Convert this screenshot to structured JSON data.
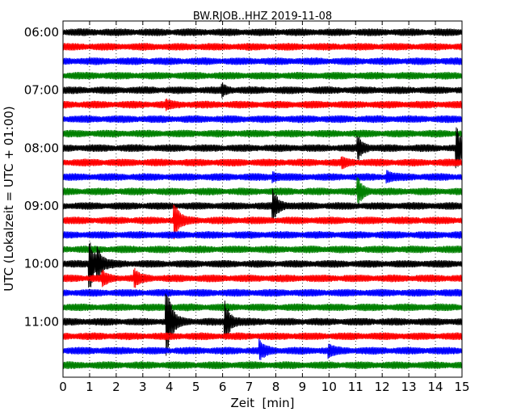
{
  "chart_data": {
    "type": "line",
    "title": "BW.RJOB..HHZ 2019-11-08",
    "xlabel": "Zeit  [min]",
    "ylabel": "UTC (Lokalzeit = UTC + 01:00)",
    "xlim": [
      0,
      15
    ],
    "x_ticks": [
      0,
      1,
      2,
      3,
      4,
      5,
      6,
      7,
      8,
      9,
      10,
      11,
      12,
      13,
      14,
      15
    ],
    "y_tick_labels": [
      "06:00",
      "07:00",
      "08:00",
      "09:00",
      "10:00",
      "11:00"
    ],
    "trace_interval_min": 15,
    "grid": "vertical dotted lines at each minute",
    "series_colors": [
      "#000000",
      "#ff0000",
      "#0000ff",
      "#008000"
    ],
    "series": [
      {
        "start": "06:00",
        "events": []
      },
      {
        "start": "06:15",
        "events": []
      },
      {
        "start": "06:30",
        "events": []
      },
      {
        "start": "06:45",
        "events": []
      },
      {
        "start": "07:00",
        "events": [
          {
            "t": 6.0,
            "amp": 0.3
          }
        ]
      },
      {
        "start": "07:15",
        "events": [
          {
            "t": 3.9,
            "amp": 0.2
          }
        ]
      },
      {
        "start": "07:30",
        "events": []
      },
      {
        "start": "07:45",
        "events": []
      },
      {
        "start": "08:00",
        "events": [
          {
            "t": 11.1,
            "amp": 0.75
          },
          {
            "t": 14.8,
            "amp": 1.5
          }
        ]
      },
      {
        "start": "08:15",
        "events": [
          {
            "t": 10.5,
            "amp": 0.25
          }
        ]
      },
      {
        "start": "08:30",
        "events": [
          {
            "t": 7.9,
            "amp": 0.3
          },
          {
            "t": 12.2,
            "amp": 0.3
          }
        ]
      },
      {
        "start": "08:45",
        "events": [
          {
            "t": 11.1,
            "amp": 0.85
          }
        ]
      },
      {
        "start": "09:00",
        "events": [
          {
            "t": 7.9,
            "amp": 1.1
          }
        ]
      },
      {
        "start": "09:15",
        "events": [
          {
            "t": 4.2,
            "amp": 1.1
          }
        ]
      },
      {
        "start": "09:30",
        "events": []
      },
      {
        "start": "09:45",
        "events": []
      },
      {
        "start": "10:00",
        "events": [
          {
            "t": 1.0,
            "amp": 1.9
          },
          {
            "t": 1.3,
            "amp": 0.8
          }
        ]
      },
      {
        "start": "10:15",
        "events": [
          {
            "t": 1.5,
            "amp": 0.4
          },
          {
            "t": 2.7,
            "amp": 0.5
          }
        ]
      },
      {
        "start": "10:30",
        "events": []
      },
      {
        "start": "10:45",
        "events": []
      },
      {
        "start": "11:00",
        "events": [
          {
            "t": 3.9,
            "amp": 2.6
          },
          {
            "t": 6.1,
            "amp": 1.4
          }
        ]
      },
      {
        "start": "11:15",
        "events": []
      },
      {
        "start": "11:30",
        "events": [
          {
            "t": 7.4,
            "amp": 0.6
          },
          {
            "t": 10.0,
            "amp": 0.35
          }
        ]
      },
      {
        "start": "11:45",
        "events": []
      }
    ]
  }
}
